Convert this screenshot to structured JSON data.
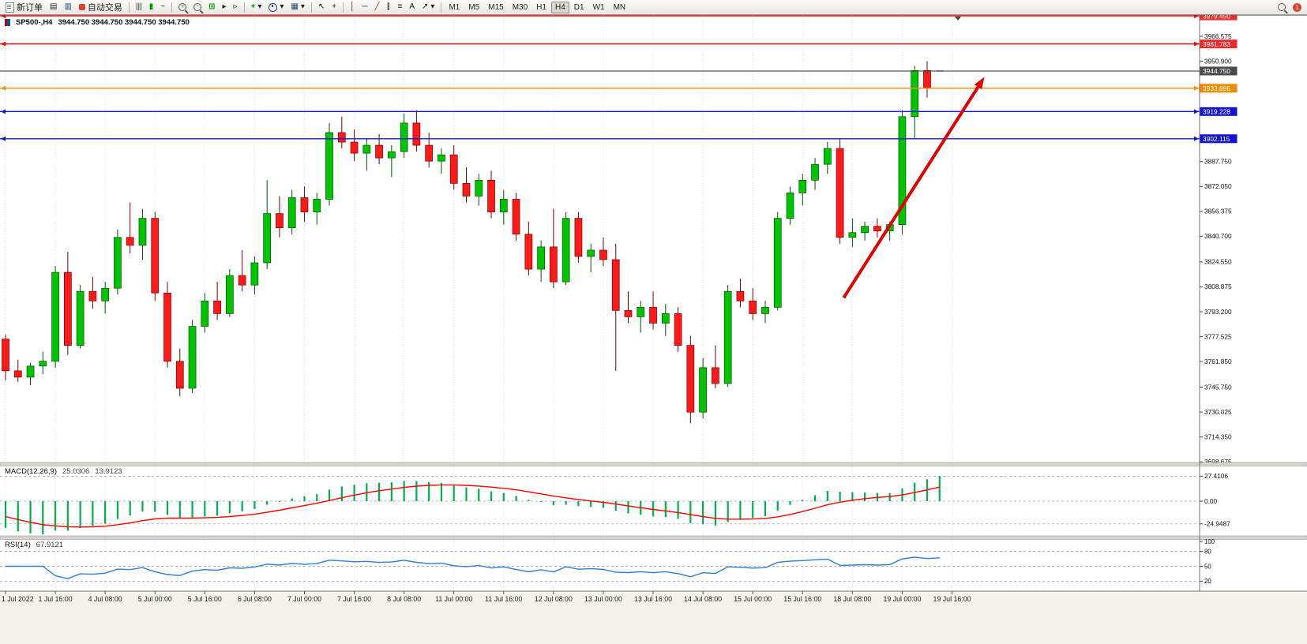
{
  "toolbar": {
    "new_order": "新订单",
    "autotrade": "自动交易",
    "timeframes": [
      "M1",
      "M5",
      "M15",
      "M30",
      "H1",
      "H4",
      "D1",
      "W1",
      "MN"
    ],
    "active_timeframe": "H4",
    "icon_glyphs": {
      "charts": "▤",
      "profiles": "▥",
      "bar_chart": "|||",
      "candle_chart": "▮",
      "line_chart": "~",
      "tile": "⊞",
      "autoscroll": "▸",
      "shift": "▹",
      "indicators": "+",
      "dropdown": "▾",
      "cursor": "↖",
      "crosshair": "+",
      "vline": "│",
      "hline": "─",
      "trendline": "╱",
      "channel": "∥",
      "fibonacci": "≡",
      "text_tool": "A",
      "arrows_tool": "↗",
      "template": "▦",
      "zoom_in": "+",
      "zoom_out": "−"
    }
  },
  "chart_data": {
    "type": "candlestick",
    "title": "SP500-,H4",
    "ohlc_text": "3944.750 3944.750 3944.750 3944.750",
    "current_price": 3944.75,
    "price_range": [
      3698.3,
      3980.0
    ],
    "price_axis_ticks": [
      3966.575,
      3950.9,
      3887.75,
      3872.05,
      3856.375,
      3840.7,
      3824.55,
      3808.875,
      3793.2,
      3777.525,
      3761.85,
      3745.75,
      3730.025,
      3714.35,
      3698.675
    ],
    "price_levels": [
      {
        "price": 3979.45,
        "label": "3979.450",
        "color": "#FF0000",
        "badge": "#E52B2B",
        "object": true
      },
      {
        "price": 3961.783,
        "label": "3961.783",
        "color": "#FF0000",
        "badge": "#E52B2B",
        "object": true
      },
      {
        "price": 3944.75,
        "label": "3944.750",
        "color": "#333333",
        "badge": "#4A4A4A",
        "current": true
      },
      {
        "price": 3933.896,
        "label": "3933.896",
        "color": "#FF8C00",
        "badge": "#F08C00",
        "object": true
      },
      {
        "price": 3919.228,
        "label": "3919.228",
        "color": "#1414E6",
        "badge": "#1414CC",
        "object": true
      },
      {
        "price": 3902.115,
        "label": "3902.115",
        "color": "#1414E6",
        "badge": "#1414CC",
        "object": true
      }
    ],
    "time_labels": [
      {
        "bar": 0,
        "label": "1 Jul 2022"
      },
      {
        "bar": 4,
        "label": "1 Jul 16:00"
      },
      {
        "bar": 8,
        "label": "4 Jul 08:00"
      },
      {
        "bar": 12,
        "label": "5 Jul 00:00"
      },
      {
        "bar": 16,
        "label": "5 Jul 16:00"
      },
      {
        "bar": 20,
        "label": "6 Jul 08:00"
      },
      {
        "bar": 24,
        "label": "7 Jul 00:00"
      },
      {
        "bar": 28,
        "label": "7 Jul 16:00"
      },
      {
        "bar": 32,
        "label": "8 Jul 08:00"
      },
      {
        "bar": 36,
        "label": "11 Jul 00:00"
      },
      {
        "bar": 40,
        "label": "11 Jul 16:00"
      },
      {
        "bar": 44,
        "label": "12 Jul 08:00"
      },
      {
        "bar": 48,
        "label": "13 Jul 00:00"
      },
      {
        "bar": 52,
        "label": "13 Jul 16:00"
      },
      {
        "bar": 56,
        "label": "14 Jul 08:00"
      },
      {
        "bar": 60,
        "label": "15 Jul 00:00"
      },
      {
        "bar": 64,
        "label": "15 Jul 16:00"
      },
      {
        "bar": 68,
        "label": "18 Jul 08:00"
      },
      {
        "bar": 72,
        "label": "19 Jul 00:00"
      },
      {
        "bar": 76,
        "label": "19 Jul 16:00"
      }
    ],
    "candles": [
      [
        3776,
        3779,
        3750,
        3756
      ],
      [
        3756,
        3763,
        3749,
        3752
      ],
      [
        3752,
        3761,
        3747,
        3759
      ],
      [
        3759,
        3768,
        3754,
        3762
      ],
      [
        3762,
        3822,
        3758,
        3818
      ],
      [
        3818,
        3831,
        3766,
        3772
      ],
      [
        3772,
        3810,
        3770,
        3806
      ],
      [
        3806,
        3815,
        3795,
        3800
      ],
      [
        3800,
        3812,
        3792,
        3808
      ],
      [
        3808,
        3845,
        3804,
        3840
      ],
      [
        3840,
        3862,
        3830,
        3835
      ],
      [
        3835,
        3858,
        3826,
        3852
      ],
      [
        3852,
        3856,
        3800,
        3805
      ],
      [
        3805,
        3812,
        3758,
        3762
      ],
      [
        3762,
        3770,
        3740,
        3745
      ],
      [
        3745,
        3788,
        3742,
        3784
      ],
      [
        3784,
        3805,
        3780,
        3800
      ],
      [
        3800,
        3812,
        3788,
        3792
      ],
      [
        3792,
        3820,
        3790,
        3816
      ],
      [
        3816,
        3832,
        3806,
        3810
      ],
      [
        3810,
        3828,
        3804,
        3824
      ],
      [
        3824,
        3876,
        3820,
        3855
      ],
      [
        3855,
        3866,
        3840,
        3846
      ],
      [
        3846,
        3870,
        3842,
        3865
      ],
      [
        3865,
        3872,
        3850,
        3856
      ],
      [
        3856,
        3868,
        3848,
        3864
      ],
      [
        3864,
        3912,
        3860,
        3906
      ],
      [
        3906,
        3916,
        3896,
        3900
      ],
      [
        3900,
        3908,
        3888,
        3893
      ],
      [
        3893,
        3902,
        3882,
        3898
      ],
      [
        3898,
        3905,
        3886,
        3890
      ],
      [
        3890,
        3898,
        3878,
        3894
      ],
      [
        3894,
        3918,
        3890,
        3912
      ],
      [
        3912,
        3920,
        3894,
        3898
      ],
      [
        3898,
        3906,
        3884,
        3888
      ],
      [
        3888,
        3896,
        3880,
        3892
      ],
      [
        3892,
        3898,
        3870,
        3874
      ],
      [
        3874,
        3884,
        3862,
        3866
      ],
      [
        3866,
        3880,
        3860,
        3876
      ],
      [
        3876,
        3882,
        3852,
        3856
      ],
      [
        3856,
        3870,
        3848,
        3864
      ],
      [
        3864,
        3868,
        3838,
        3842
      ],
      [
        3842,
        3850,
        3816,
        3820
      ],
      [
        3820,
        3838,
        3812,
        3834
      ],
      [
        3834,
        3858,
        3808,
        3812
      ],
      [
        3812,
        3856,
        3810,
        3852
      ],
      [
        3852,
        3856,
        3824,
        3828
      ],
      [
        3828,
        3836,
        3818,
        3832
      ],
      [
        3832,
        3840,
        3822,
        3826
      ],
      [
        3826,
        3836,
        3756,
        3794
      ],
      [
        3794,
        3806,
        3786,
        3790
      ],
      [
        3790,
        3800,
        3780,
        3796
      ],
      [
        3796,
        3806,
        3782,
        3786
      ],
      [
        3786,
        3798,
        3778,
        3792
      ],
      [
        3792,
        3796,
        3768,
        3772
      ],
      [
        3772,
        3778,
        3723,
        3730
      ],
      [
        3730,
        3764,
        3726,
        3758
      ],
      [
        3758,
        3772,
        3745,
        3748
      ],
      [
        3748,
        3810,
        3746,
        3806
      ],
      [
        3806,
        3814,
        3796,
        3800
      ],
      [
        3800,
        3808,
        3788,
        3792
      ],
      [
        3792,
        3800,
        3786,
        3796
      ],
      [
        3796,
        3856,
        3794,
        3852
      ],
      [
        3852,
        3872,
        3848,
        3868
      ],
      [
        3868,
        3880,
        3860,
        3876
      ],
      [
        3876,
        3890,
        3870,
        3886
      ],
      [
        3886,
        3900,
        3880,
        3896
      ],
      [
        3896,
        3902,
        3836,
        3840
      ],
      [
        3840,
        3852,
        3834,
        3843
      ],
      [
        3843,
        3850,
        3838,
        3847
      ],
      [
        3847,
        3852,
        3840,
        3844
      ],
      [
        3844,
        3850,
        3838,
        3848
      ],
      [
        3848,
        3920,
        3842,
        3916
      ],
      [
        3916,
        3948,
        3902,
        3945
      ],
      [
        3945,
        3950.9,
        3928,
        3934
      ],
      [
        3944.75,
        3944.75,
        3944.75,
        3944.75
      ]
    ],
    "indicator_seed": [
      3900,
      3885,
      3872,
      3860,
      3850,
      3840,
      3828,
      3815,
      3800,
      3788
    ],
    "macd": {
      "title": "MACD(12,26,9)",
      "value_main": "25.0306",
      "value_signal": "13.9123",
      "axis_labels": [
        "27.4106",
        "0.00",
        "-24.9487"
      ],
      "params": [
        12,
        26,
        9
      ],
      "histogram_color": "#00B050",
      "signal_color": "#FF0000"
    },
    "rsi": {
      "title": "RSI(14)",
      "value": "67.9121",
      "period": 14,
      "axis_labels": [
        "100",
        "80",
        "50",
        "20"
      ],
      "line_color": "#2F7ED8"
    },
    "annotation_arrow": {
      "x1_bar": 67.3,
      "price1": 3802,
      "x2_bar": 78.6,
      "price2": 3941,
      "color": "#E00000"
    }
  }
}
